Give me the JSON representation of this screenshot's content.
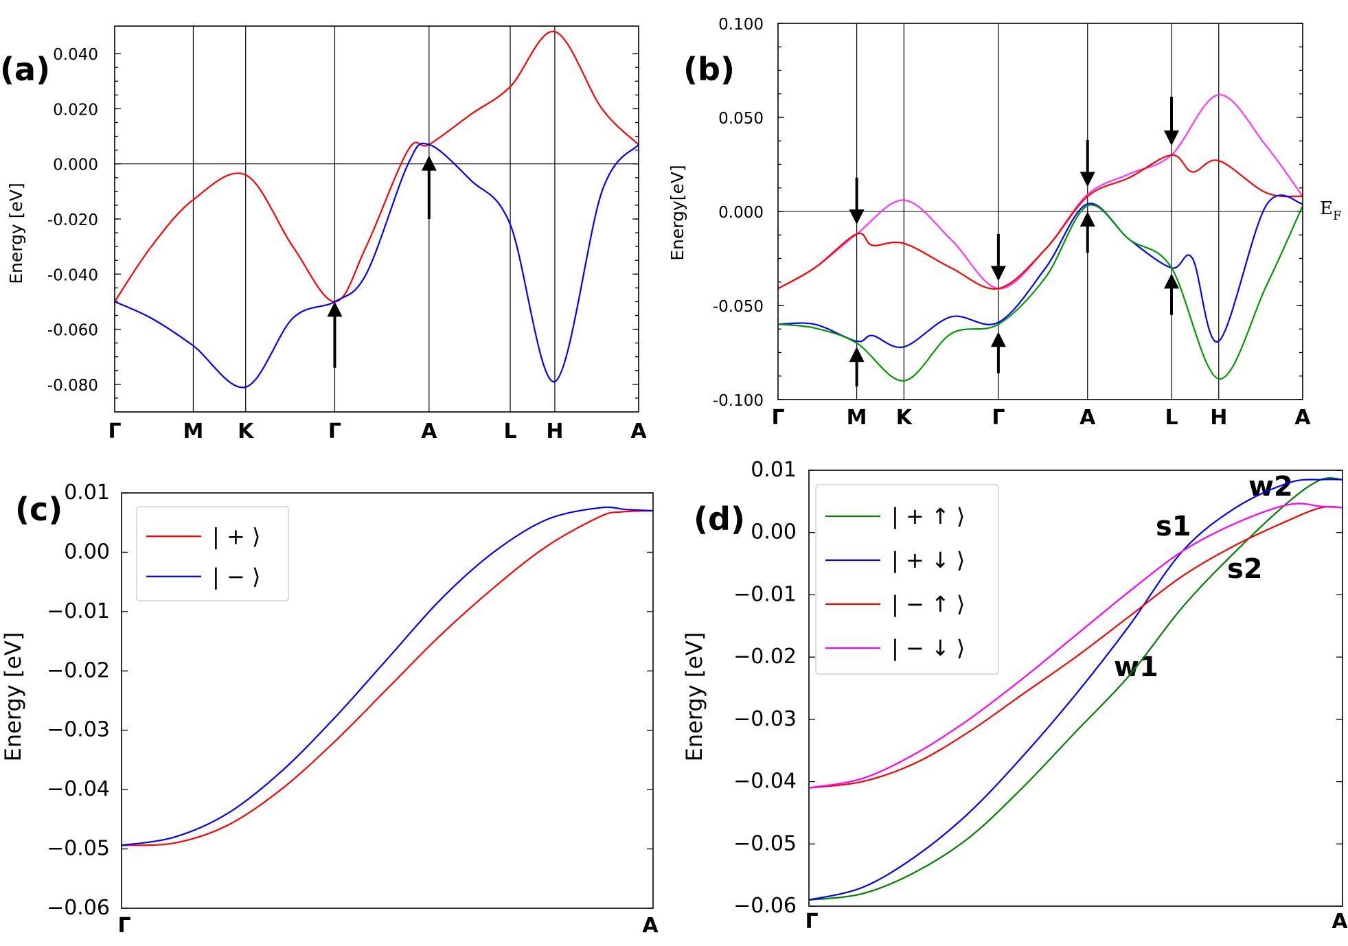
{
  "chart_data": [
    {
      "panel": "(a)",
      "type": "line",
      "ylabel": "Energy [eV]",
      "ylim": [
        -0.09,
        0.05
      ],
      "yticks": [
        "0.040",
        "0.020",
        "0.000",
        "-0.020",
        "-0.040",
        "-0.060",
        "-0.080"
      ],
      "path_labels": [
        "Γ",
        "M",
        "K",
        "Γ",
        "A",
        "L",
        "H",
        "A"
      ],
      "path_positions": [
        0,
        0.15,
        0.25,
        0.42,
        0.6,
        0.755,
        0.84,
        1.0
      ],
      "arrows": [
        {
          "x": 0.42,
          "from": -0.074,
          "to": -0.05,
          "direction": "up"
        },
        {
          "x": 0.6,
          "from": -0.02,
          "to": 0.003,
          "direction": "up"
        }
      ],
      "series": [
        {
          "name": "red band",
          "color": "#ff0000",
          "points": [
            [
              0,
              -0.05
            ],
            [
              0.07,
              -0.03
            ],
            [
              0.15,
              -0.013
            ],
            [
              0.25,
              -0.004
            ],
            [
              0.34,
              -0.03
            ],
            [
              0.42,
              -0.05
            ],
            [
              0.48,
              -0.03
            ],
            [
              0.56,
              0.005
            ],
            [
              0.6,
              0.007
            ],
            [
              0.68,
              0.018
            ],
            [
              0.755,
              0.028
            ],
            [
              0.84,
              0.048
            ],
            [
              0.93,
              0.02
            ],
            [
              1.0,
              0.007
            ]
          ]
        },
        {
          "name": "blue band",
          "color": "#0000ff",
          "points": [
            [
              0,
              -0.05
            ],
            [
              0.07,
              -0.056
            ],
            [
              0.15,
              -0.066
            ],
            [
              0.25,
              -0.081
            ],
            [
              0.34,
              -0.056
            ],
            [
              0.42,
              -0.05
            ],
            [
              0.48,
              -0.04
            ],
            [
              0.56,
              0.0
            ],
            [
              0.6,
              0.007
            ],
            [
              0.68,
              -0.006
            ],
            [
              0.755,
              -0.022
            ],
            [
              0.84,
              -0.079
            ],
            [
              0.93,
              -0.01
            ],
            [
              1.0,
              0.007
            ]
          ]
        }
      ]
    },
    {
      "panel": "(b)",
      "type": "line",
      "ylabel": "Energy[eV]",
      "ylim": [
        -0.1,
        0.1
      ],
      "yticks": [
        "0.100",
        "0.050",
        "0.000",
        "-0.050",
        "-0.100"
      ],
      "path_labels": [
        "Γ",
        "M",
        "K",
        "Γ",
        "A",
        "L",
        "H",
        "A"
      ],
      "path_positions": [
        0,
        0.15,
        0.24,
        0.42,
        0.59,
        0.75,
        0.84,
        1.0
      ],
      "fermi_label": "E",
      "fermi_subscript": "F",
      "arrows": [
        {
          "x": 0.15,
          "from": 0.018,
          "to": -0.007,
          "direction": "down"
        },
        {
          "x": 0.15,
          "from": -0.093,
          "to": -0.072,
          "direction": "up"
        },
        {
          "x": 0.42,
          "from": -0.012,
          "to": -0.037,
          "direction": "down"
        },
        {
          "x": 0.42,
          "from": -0.086,
          "to": -0.064,
          "direction": "up"
        },
        {
          "x": 0.59,
          "from": 0.038,
          "to": 0.013,
          "direction": "down"
        },
        {
          "x": 0.59,
          "from": -0.022,
          "to": 0.0,
          "direction": "up"
        },
        {
          "x": 0.75,
          "from": 0.061,
          "to": 0.035,
          "direction": "down"
        },
        {
          "x": 0.75,
          "from": -0.055,
          "to": -0.033,
          "direction": "up"
        }
      ],
      "series": [
        {
          "name": "magenta band",
          "color": "#ff33ff",
          "points": [
            [
              0,
              -0.041
            ],
            [
              0.07,
              -0.03
            ],
            [
              0.15,
              -0.012
            ],
            [
              0.24,
              0.006
            ],
            [
              0.33,
              -0.015
            ],
            [
              0.42,
              -0.041
            ],
            [
              0.51,
              -0.02
            ],
            [
              0.59,
              0.009
            ],
            [
              0.67,
              0.02
            ],
            [
              0.75,
              0.03
            ],
            [
              0.84,
              0.062
            ],
            [
              0.93,
              0.035
            ],
            [
              1.0,
              0.008
            ]
          ]
        },
        {
          "name": "red band",
          "color": "#ff0000",
          "points": [
            [
              0,
              -0.041
            ],
            [
              0.07,
              -0.03
            ],
            [
              0.15,
              -0.012
            ],
            [
              0.18,
              -0.018
            ],
            [
              0.24,
              -0.017
            ],
            [
              0.33,
              -0.03
            ],
            [
              0.42,
              -0.041
            ],
            [
              0.51,
              -0.02
            ],
            [
              0.59,
              0.008
            ],
            [
              0.67,
              0.018
            ],
            [
              0.75,
              0.03
            ],
            [
              0.79,
              0.021
            ],
            [
              0.84,
              0.027
            ],
            [
              0.93,
              0.01
            ],
            [
              1.0,
              0.008
            ]
          ]
        },
        {
          "name": "blue band",
          "color": "#0000ff",
          "points": [
            [
              0,
              -0.06
            ],
            [
              0.07,
              -0.06
            ],
            [
              0.15,
              -0.069
            ],
            [
              0.18,
              -0.066
            ],
            [
              0.24,
              -0.072
            ],
            [
              0.33,
              -0.056
            ],
            [
              0.42,
              -0.059
            ],
            [
              0.51,
              -0.03
            ],
            [
              0.59,
              0.004
            ],
            [
              0.67,
              -0.015
            ],
            [
              0.75,
              -0.03
            ],
            [
              0.79,
              -0.025
            ],
            [
              0.84,
              -0.069
            ],
            [
              0.93,
              0.003
            ],
            [
              1.0,
              0.004
            ]
          ]
        },
        {
          "name": "green band",
          "color": "#009900",
          "points": [
            [
              0,
              -0.06
            ],
            [
              0.07,
              -0.062
            ],
            [
              0.15,
              -0.07
            ],
            [
              0.24,
              -0.09
            ],
            [
              0.33,
              -0.065
            ],
            [
              0.42,
              -0.06
            ],
            [
              0.51,
              -0.035
            ],
            [
              0.59,
              0.003
            ],
            [
              0.67,
              -0.015
            ],
            [
              0.75,
              -0.03
            ],
            [
              0.84,
              -0.089
            ],
            [
              0.93,
              -0.04
            ],
            [
              1.0,
              0.003
            ]
          ]
        }
      ]
    },
    {
      "panel": "(c)",
      "type": "line",
      "ylabel": "Energy [eV]",
      "ylim": [
        -0.06,
        0.01
      ],
      "yticks": [
        "0.01",
        "0.00",
        "−0.01",
        "−0.02",
        "−0.03",
        "−0.04",
        "−0.05",
        "−0.06"
      ],
      "path_labels": [
        "Γ",
        "A"
      ],
      "legend": [
        {
          "label": "| + ⟩",
          "color": "#ff0000"
        },
        {
          "label": "| − ⟩",
          "color": "#0000ff"
        }
      ],
      "series": [
        {
          "name": "| + ⟩",
          "color": "#ff0000",
          "points": [
            [
              0,
              -0.0494
            ],
            [
              0.1,
              -0.049
            ],
            [
              0.2,
              -0.046
            ],
            [
              0.3,
              -0.04
            ],
            [
              0.4,
              -0.032
            ],
            [
              0.5,
              -0.023
            ],
            [
              0.6,
              -0.014
            ],
            [
              0.7,
              -0.006
            ],
            [
              0.8,
              0.001
            ],
            [
              0.9,
              0.006
            ],
            [
              0.94,
              0.0068
            ],
            [
              1.0,
              0.007
            ]
          ]
        },
        {
          "name": "| − ⟩",
          "color": "#0000ff",
          "points": [
            [
              0,
              -0.0494
            ],
            [
              0.1,
              -0.048
            ],
            [
              0.2,
              -0.044
            ],
            [
              0.3,
              -0.037
            ],
            [
              0.4,
              -0.028
            ],
            [
              0.5,
              -0.018
            ],
            [
              0.6,
              -0.008
            ],
            [
              0.7,
              0.0
            ],
            [
              0.8,
              0.0055
            ],
            [
              0.9,
              0.0075
            ],
            [
              0.95,
              0.0072
            ],
            [
              1.0,
              0.007
            ]
          ]
        }
      ]
    },
    {
      "panel": "(d)",
      "type": "line",
      "ylabel": "Energy [eV]",
      "ylim": [
        -0.06,
        0.01
      ],
      "yticks": [
        "0.01",
        "0.00",
        "−0.01",
        "−0.02",
        "−0.03",
        "−0.04",
        "−0.05",
        "−0.06"
      ],
      "path_labels": [
        "Γ",
        "A"
      ],
      "annotations": [
        "w2",
        "s1",
        "s2",
        "w1"
      ],
      "legend": [
        {
          "label": "| + ↑ ⟩",
          "color": "#008000"
        },
        {
          "label": "| + ↓ ⟩",
          "color": "#0000ff"
        },
        {
          "label": "| − ↑ ⟩",
          "color": "#ff0000"
        },
        {
          "label": "| − ↓ ⟩",
          "color": "#ff00ff"
        }
      ],
      "series": [
        {
          "name": "| + ↑ ⟩",
          "color": "#008000",
          "points": [
            [
              0,
              -0.059
            ],
            [
              0.1,
              -0.058
            ],
            [
              0.2,
              -0.0545
            ],
            [
              0.3,
              -0.049
            ],
            [
              0.4,
              -0.041
            ],
            [
              0.5,
              -0.032
            ],
            [
              0.6,
              -0.023
            ],
            [
              0.7,
              -0.012
            ],
            [
              0.8,
              -0.003
            ],
            [
              0.9,
              0.005
            ],
            [
              0.96,
              0.0085
            ],
            [
              1.0,
              0.0085
            ]
          ]
        },
        {
          "name": "| + ↓ ⟩",
          "color": "#0000ff",
          "points": [
            [
              0,
              -0.059
            ],
            [
              0.1,
              -0.057
            ],
            [
              0.2,
              -0.052
            ],
            [
              0.3,
              -0.045
            ],
            [
              0.4,
              -0.036
            ],
            [
              0.5,
              -0.026
            ],
            [
              0.6,
              -0.015
            ],
            [
              0.7,
              -0.003
            ],
            [
              0.8,
              0.004
            ],
            [
              0.9,
              0.008
            ],
            [
              0.96,
              0.0085
            ],
            [
              1.0,
              0.0085
            ]
          ]
        },
        {
          "name": "| − ↑ ⟩",
          "color": "#ff0000",
          "points": [
            [
              0,
              -0.041
            ],
            [
              0.1,
              -0.04
            ],
            [
              0.2,
              -0.037
            ],
            [
              0.3,
              -0.032
            ],
            [
              0.4,
              -0.026
            ],
            [
              0.5,
              -0.02
            ],
            [
              0.6,
              -0.0135
            ],
            [
              0.7,
              -0.007
            ],
            [
              0.8,
              -0.002
            ],
            [
              0.9,
              0.002
            ],
            [
              0.96,
              0.004
            ],
            [
              1.0,
              0.004
            ]
          ]
        },
        {
          "name": "| − ↓ ⟩",
          "color": "#ff00ff",
          "points": [
            [
              0,
              -0.041
            ],
            [
              0.1,
              -0.0395
            ],
            [
              0.2,
              -0.0355
            ],
            [
              0.3,
              -0.03
            ],
            [
              0.4,
              -0.0235
            ],
            [
              0.5,
              -0.0165
            ],
            [
              0.6,
              -0.0095
            ],
            [
              0.7,
              -0.003
            ],
            [
              0.8,
              0.0015
            ],
            [
              0.9,
              0.0045
            ],
            [
              0.96,
              0.0042
            ],
            [
              1.0,
              0.004
            ]
          ]
        }
      ]
    }
  ]
}
